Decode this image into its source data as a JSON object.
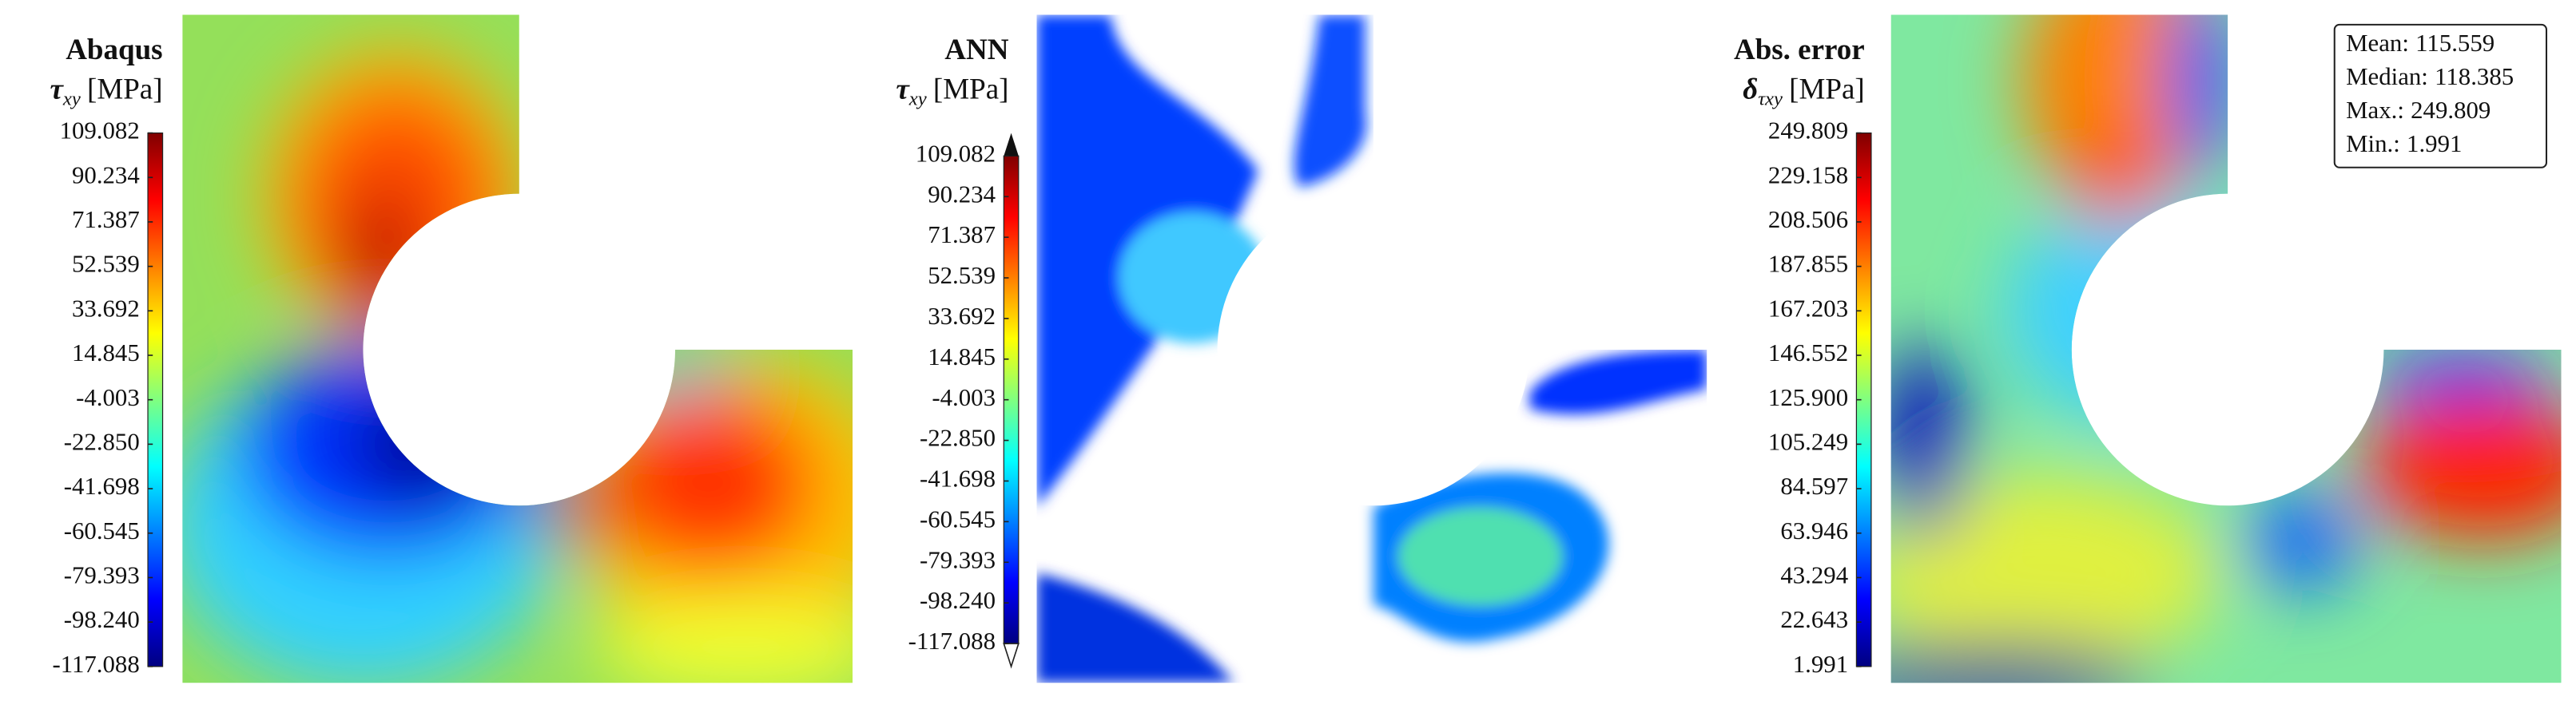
{
  "chart_data": [
    {
      "type": "contour",
      "title": "Abaqus",
      "symbol": "τ",
      "subscript": "xy",
      "unit": "[MPa]",
      "clim": [
        -117.088,
        109.082
      ],
      "cticks": [
        109.082,
        90.234,
        71.387,
        52.539,
        33.692,
        14.845,
        -4.003,
        {
          "value": -22.85,
          "label": "-22.850"
        },
        -41.698,
        -60.545,
        -79.393,
        {
          "value": -98.24,
          "label": "-98.240"
        },
        -117.088
      ]
    },
    {
      "type": "contour",
      "title": "ANN",
      "symbol": "τ",
      "subscript": "xy",
      "unit": "[MPa]",
      "clim": [
        -117.088,
        109.082
      ],
      "extend": "both",
      "cticks": [
        109.082,
        90.234,
        71.387,
        52.539,
        33.692,
        14.845,
        -4.003,
        {
          "value": -22.85,
          "label": "-22.850"
        },
        -41.698,
        -60.545,
        -79.393,
        {
          "value": -98.24,
          "label": "-98.240"
        },
        -117.088
      ]
    },
    {
      "type": "contour",
      "title": "Abs. error",
      "symbol": "δ",
      "subscript": "τxy",
      "unit": "[MPa]",
      "clim": [
        1.991,
        249.809
      ],
      "cticks": [
        249.809,
        229.158,
        208.506,
        187.855,
        167.203,
        146.552,
        {
          "value": 125.9,
          "label": "125.900"
        },
        105.249,
        84.597,
        63.946,
        43.294,
        22.643,
        1.991
      ],
      "stats": [
        {
          "label": "Mean:",
          "value": 115.559
        },
        {
          "label": "Median:",
          "value": 118.385
        },
        {
          "label": "Max.:",
          "value": 249.809
        },
        {
          "label": "Min.:",
          "value": 1.991
        }
      ]
    }
  ]
}
